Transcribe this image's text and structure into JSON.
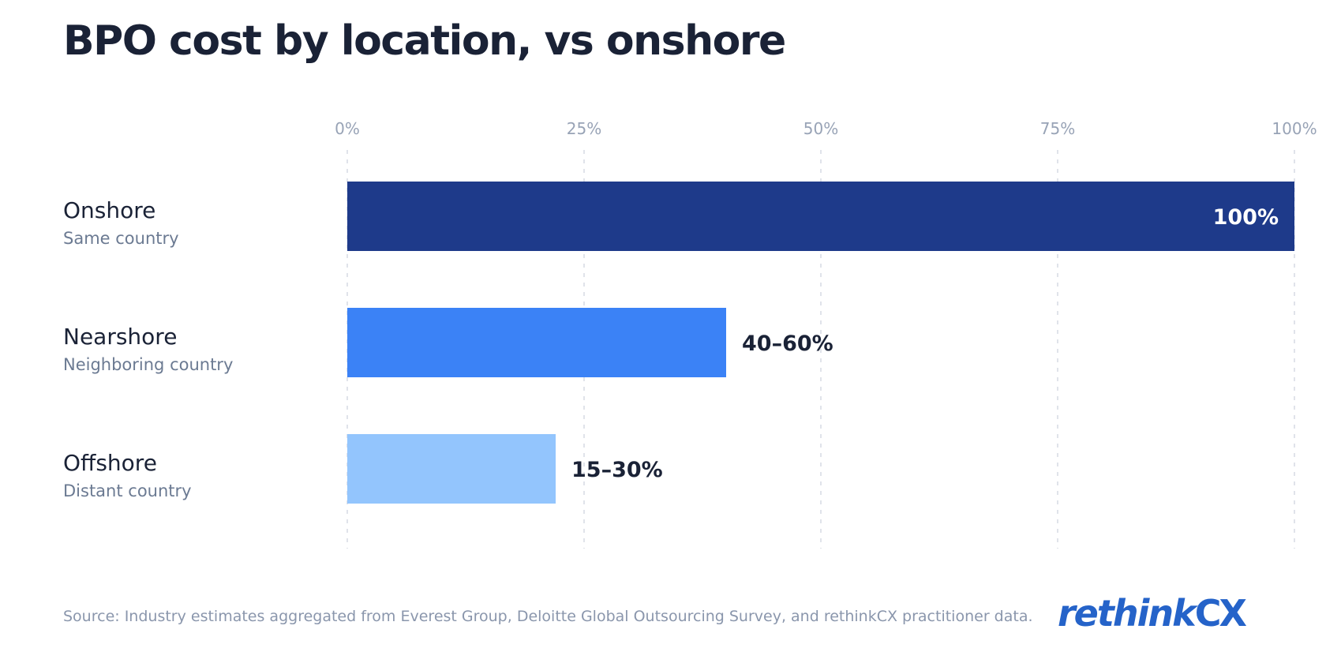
{
  "chart_data": {
    "type": "bar",
    "orientation": "horizontal",
    "title": "BPO cost by location, vs onshore",
    "xlim": [
      0,
      100
    ],
    "x_ticks": [
      {
        "value": 0,
        "label": "0%"
      },
      {
        "value": 25,
        "label": "25%"
      },
      {
        "value": 50,
        "label": "50%"
      },
      {
        "value": 75,
        "label": "75%"
      },
      {
        "value": 100,
        "label": "100%"
      }
    ],
    "grid": true,
    "categories": [
      {
        "label": "Onshore",
        "sublabel": "Same country",
        "value": 100,
        "range": [
          100,
          100
        ],
        "value_label": "100%",
        "color": "#1e3a8a",
        "label_inside": true
      },
      {
        "label": "Nearshore",
        "sublabel": "Neighboring country",
        "value": 40,
        "range": [
          40,
          60
        ],
        "value_label": "40–60%",
        "color": "#3b82f6",
        "label_inside": false
      },
      {
        "label": "Offshore",
        "sublabel": "Distant country",
        "value": 22,
        "range": [
          15,
          30
        ],
        "value_label": "15–30%",
        "color": "#93c5fd",
        "label_inside": false
      }
    ]
  },
  "footer": {
    "source": "Source: Industry estimates aggregated from Everest Group, Deloitte Global Outsourcing Survey, and rethinkCX practitioner data.",
    "brand_main": "rethink",
    "brand_suffix": "CX"
  }
}
